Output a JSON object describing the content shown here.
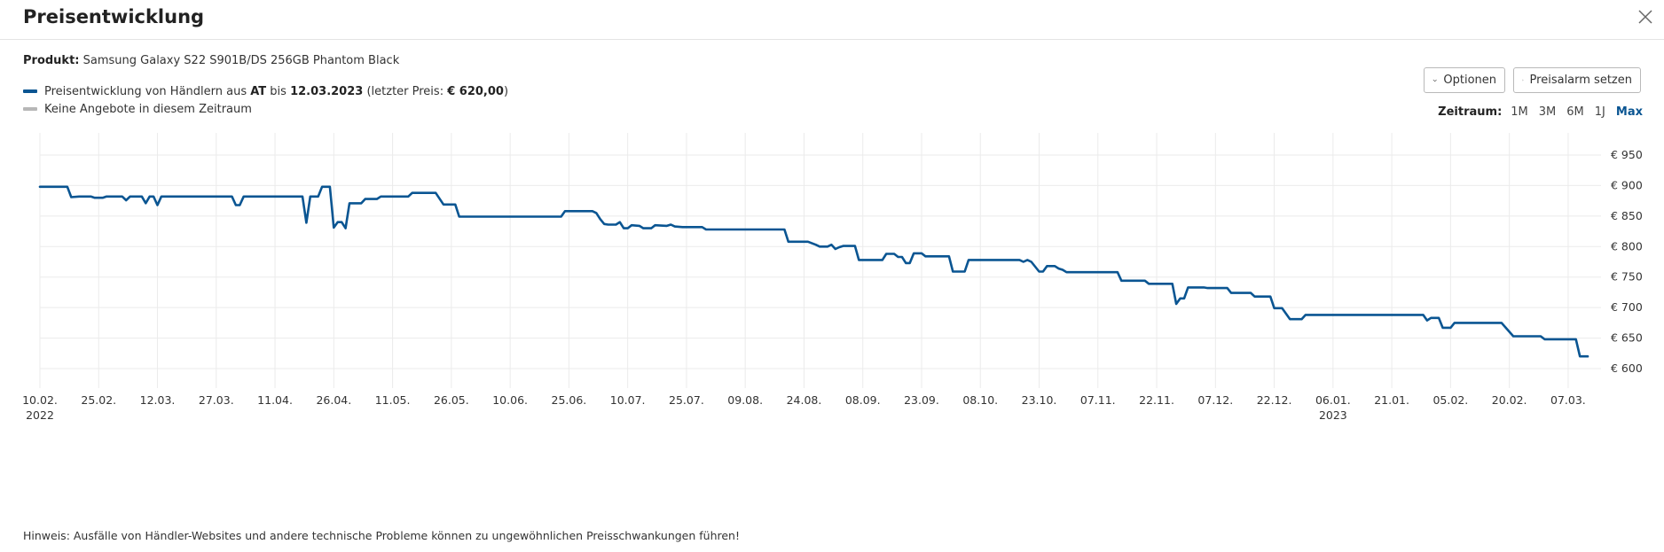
{
  "header": {
    "title": "Preisentwicklung"
  },
  "product": {
    "label": "Produkt:",
    "name": "Samsung Galaxy S22 S901B/DS 256GB Phantom Black"
  },
  "legend": {
    "line1_pre": "Preisentwicklung von Händlern aus ",
    "line1_country": "AT",
    "line1_mid": " bis ",
    "line1_date": "12.03.2023",
    "line1_post1": " (letzter Preis: ",
    "line1_price": "€ 620,00",
    "line1_post2": ")",
    "line2": "Keine Angebote in diesem Zeitraum",
    "series_color": "#0a5592",
    "none_color": "#b7b7b7"
  },
  "buttons": {
    "options": "Optionen",
    "alarm": "Preisalarm setzen"
  },
  "zeitraum": {
    "label": "Zeitraum:",
    "options": [
      "1M",
      "3M",
      "6M",
      "1J",
      "Max"
    ],
    "active": "Max"
  },
  "hint": "Hinweis: Ausfälle von Händler-Websites und andere technische Probleme können zu ungewöhnlichen Preisschwankungen führen!",
  "chart_data": {
    "type": "line",
    "y_unit": "€",
    "ylim": [
      590,
      960
    ],
    "yticks": [
      600,
      650,
      700,
      750,
      800,
      850,
      900,
      950
    ],
    "ytick_labels": [
      "€ 600",
      "€ 650",
      "€ 700",
      "€ 750",
      "€ 800",
      "€ 850",
      "€ 900",
      "€ 950"
    ],
    "x_start": "2022-02-10",
    "x_end": "2023-03-12",
    "xticks": [
      "2022-02-10",
      "2022-02-25",
      "2022-03-12",
      "2022-03-27",
      "2022-04-11",
      "2022-04-26",
      "2022-05-11",
      "2022-05-26",
      "2022-06-10",
      "2022-06-25",
      "2022-07-10",
      "2022-07-25",
      "2022-08-09",
      "2022-08-24",
      "2022-09-08",
      "2022-09-23",
      "2022-10-08",
      "2022-10-23",
      "2022-11-07",
      "2022-11-22",
      "2022-12-07",
      "2022-12-22",
      "2023-01-06",
      "2023-01-21",
      "2023-02-05",
      "2023-02-20",
      "2023-03-07"
    ],
    "xtick_labels": [
      "10.02.",
      "25.02.",
      "12.03.",
      "27.03.",
      "11.04.",
      "26.04.",
      "11.05.",
      "26.05.",
      "10.06.",
      "25.06.",
      "10.07.",
      "25.07.",
      "09.08.",
      "24.08.",
      "08.09.",
      "23.09.",
      "08.10.",
      "23.10.",
      "07.11.",
      "22.11.",
      "07.12.",
      "22.12.",
      "06.01.",
      "21.01.",
      "05.02.",
      "20.02.",
      "07.03."
    ],
    "year_labels": [
      {
        "date": "2022-02-10",
        "label": "2022"
      },
      {
        "date": "2023-01-06",
        "label": "2023"
      }
    ],
    "grid": true,
    "series": [
      {
        "color": "#0a5592",
        "points": [
          [
            "2022-02-10",
            898
          ],
          [
            "2022-02-17",
            898
          ],
          [
            "2022-02-18",
            881
          ],
          [
            "2022-02-20",
            882
          ],
          [
            "2022-02-23",
            882
          ],
          [
            "2022-02-24",
            880
          ],
          [
            "2022-02-26",
            880
          ],
          [
            "2022-02-27",
            882
          ],
          [
            "2022-03-03",
            882
          ],
          [
            "2022-03-04",
            876
          ],
          [
            "2022-03-05",
            882
          ],
          [
            "2022-03-08",
            882
          ],
          [
            "2022-03-09",
            871
          ],
          [
            "2022-03-10",
            882
          ],
          [
            "2022-03-11",
            882
          ],
          [
            "2022-03-12",
            868
          ],
          [
            "2022-03-13",
            882
          ],
          [
            "2022-03-31",
            882
          ],
          [
            "2022-04-01",
            868
          ],
          [
            "2022-04-02",
            868
          ],
          [
            "2022-04-03",
            882
          ],
          [
            "2022-04-18",
            882
          ],
          [
            "2022-04-19",
            839
          ],
          [
            "2022-04-20",
            882
          ],
          [
            "2022-04-22",
            882
          ],
          [
            "2022-04-23",
            898
          ],
          [
            "2022-04-25",
            898
          ],
          [
            "2022-04-26",
            831
          ],
          [
            "2022-04-27",
            840
          ],
          [
            "2022-04-28",
            840
          ],
          [
            "2022-04-29",
            830
          ],
          [
            "2022-04-30",
            871
          ],
          [
            "2022-05-03",
            871
          ],
          [
            "2022-05-04",
            878
          ],
          [
            "2022-05-07",
            878
          ],
          [
            "2022-05-08",
            882
          ],
          [
            "2022-05-15",
            882
          ],
          [
            "2022-05-16",
            888
          ],
          [
            "2022-05-22",
            888
          ],
          [
            "2022-05-24",
            869
          ],
          [
            "2022-05-27",
            869
          ],
          [
            "2022-05-28",
            849
          ],
          [
            "2022-06-23",
            849
          ],
          [
            "2022-06-24",
            858
          ],
          [
            "2022-07-01",
            858
          ],
          [
            "2022-07-02",
            855
          ],
          [
            "2022-07-03",
            845
          ],
          [
            "2022-07-04",
            837
          ],
          [
            "2022-07-05",
            836
          ],
          [
            "2022-07-07",
            836
          ],
          [
            "2022-07-08",
            840
          ],
          [
            "2022-07-09",
            830
          ],
          [
            "2022-07-10",
            830
          ],
          [
            "2022-07-11",
            835
          ],
          [
            "2022-07-13",
            834
          ],
          [
            "2022-07-14",
            830
          ],
          [
            "2022-07-16",
            830
          ],
          [
            "2022-07-17",
            835
          ],
          [
            "2022-07-20",
            834
          ],
          [
            "2022-07-21",
            836
          ],
          [
            "2022-07-22",
            833
          ],
          [
            "2022-07-24",
            832
          ],
          [
            "2022-07-29",
            832
          ],
          [
            "2022-07-30",
            828
          ],
          [
            "2022-08-19",
            828
          ],
          [
            "2022-08-20",
            808
          ],
          [
            "2022-08-25",
            808
          ],
          [
            "2022-08-27",
            803
          ],
          [
            "2022-08-28",
            800
          ],
          [
            "2022-08-30",
            800
          ],
          [
            "2022-08-31",
            803
          ],
          [
            "2022-09-01",
            796
          ],
          [
            "2022-09-02",
            799
          ],
          [
            "2022-09-03",
            801
          ],
          [
            "2022-09-06",
            801
          ],
          [
            "2022-09-07",
            778
          ],
          [
            "2022-09-13",
            778
          ],
          [
            "2022-09-14",
            788
          ],
          [
            "2022-09-16",
            788
          ],
          [
            "2022-09-17",
            783
          ],
          [
            "2022-09-18",
            783
          ],
          [
            "2022-09-19",
            773
          ],
          [
            "2022-09-20",
            773
          ],
          [
            "2022-09-21",
            789
          ],
          [
            "2022-09-23",
            789
          ],
          [
            "2022-09-24",
            784
          ],
          [
            "2022-09-30",
            784
          ],
          [
            "2022-10-01",
            759
          ],
          [
            "2022-10-04",
            759
          ],
          [
            "2022-10-05",
            778
          ],
          [
            "2022-10-18",
            778
          ],
          [
            "2022-10-19",
            775
          ],
          [
            "2022-10-20",
            778
          ],
          [
            "2022-10-21",
            775
          ],
          [
            "2022-10-22",
            767
          ],
          [
            "2022-10-23",
            759
          ],
          [
            "2022-10-24",
            759
          ],
          [
            "2022-10-25",
            768
          ],
          [
            "2022-10-27",
            768
          ],
          [
            "2022-10-28",
            764
          ],
          [
            "2022-10-29",
            762
          ],
          [
            "2022-10-30",
            758
          ],
          [
            "2022-11-12",
            758
          ],
          [
            "2022-11-13",
            744
          ],
          [
            "2022-11-19",
            744
          ],
          [
            "2022-11-20",
            739
          ],
          [
            "2022-11-26",
            739
          ],
          [
            "2022-11-27",
            706
          ],
          [
            "2022-11-28",
            715
          ],
          [
            "2022-11-29",
            715
          ],
          [
            "2022-11-30",
            733
          ],
          [
            "2022-12-04",
            733
          ],
          [
            "2022-12-05",
            732
          ],
          [
            "2022-12-10",
            732
          ],
          [
            "2022-12-11",
            724
          ],
          [
            "2022-12-16",
            724
          ],
          [
            "2022-12-17",
            718
          ],
          [
            "2022-12-21",
            718
          ],
          [
            "2022-12-22",
            699
          ],
          [
            "2022-12-24",
            699
          ],
          [
            "2022-12-26",
            681
          ],
          [
            "2022-12-29",
            681
          ],
          [
            "2022-12-30",
            688
          ],
          [
            "2023-01-29",
            688
          ],
          [
            "2023-01-30",
            679
          ],
          [
            "2023-01-31",
            683
          ],
          [
            "2023-02-02",
            683
          ],
          [
            "2023-02-03",
            667
          ],
          [
            "2023-02-05",
            667
          ],
          [
            "2023-02-06",
            675
          ],
          [
            "2023-02-18",
            675
          ],
          [
            "2023-02-21",
            653
          ],
          [
            "2023-02-28",
            653
          ],
          [
            "2023-03-01",
            648
          ],
          [
            "2023-03-09",
            648
          ],
          [
            "2023-03-10",
            620
          ],
          [
            "2023-03-12",
            620
          ]
        ]
      }
    ]
  }
}
